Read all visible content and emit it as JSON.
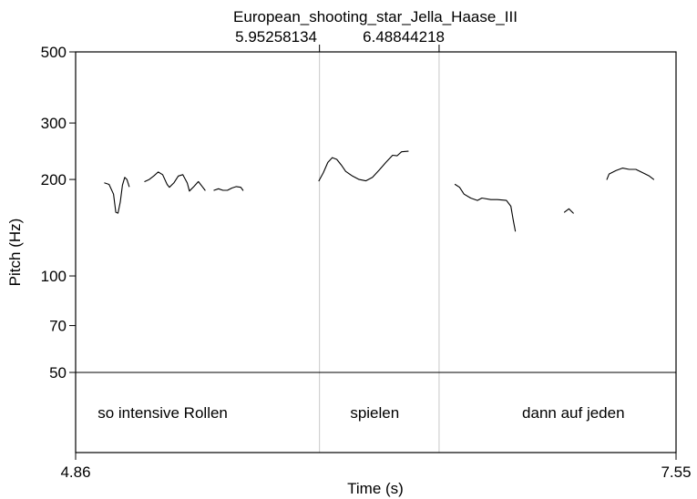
{
  "chart_data": {
    "type": "line",
    "title": "European_shooting_star_Jella_Haase_III",
    "xlabel": "Time (s)",
    "ylabel": "Pitch (Hz)",
    "scale": "log",
    "xlim": [
      4.86,
      7.55
    ],
    "ylim": [
      50,
      500
    ],
    "x_tick_labels": [
      "4.86",
      "7.55"
    ],
    "y_tick_values": [
      500,
      300,
      200,
      100,
      70,
      50
    ],
    "y_tick_labels": [
      "500",
      "300",
      "200",
      "100",
      "70",
      "50"
    ],
    "boundaries": [
      {
        "value": 5.95258134,
        "label": "5.95258134"
      },
      {
        "value": 6.48844218,
        "label": "6.48844218"
      }
    ],
    "baseline_hz": 50,
    "text_tier": [
      {
        "text": "so intensive Rollen",
        "x": 5.25
      },
      {
        "text": "spielen",
        "x": 6.2
      },
      {
        "text": "dann auf jeden",
        "x": 7.09
      }
    ],
    "series": [
      {
        "values": [
          [
            4.99,
            195
          ],
          [
            5.01,
            193
          ],
          [
            5.03,
            180
          ],
          [
            5.04,
            158
          ],
          [
            5.05,
            157
          ],
          [
            5.06,
            170
          ],
          [
            5.07,
            192
          ],
          [
            5.08,
            203
          ],
          [
            5.09,
            200
          ],
          [
            5.1,
            190
          ]
        ]
      },
      {
        "values": [
          [
            5.17,
            197
          ],
          [
            5.19,
            200
          ],
          [
            5.21,
            205
          ],
          [
            5.23,
            211
          ],
          [
            5.25,
            207
          ],
          [
            5.27,
            193
          ],
          [
            5.28,
            189
          ],
          [
            5.3,
            195
          ],
          [
            5.32,
            205
          ],
          [
            5.34,
            207
          ],
          [
            5.36,
            195
          ],
          [
            5.37,
            184
          ],
          [
            5.39,
            190
          ],
          [
            5.41,
            197
          ],
          [
            5.43,
            189
          ],
          [
            5.44,
            185
          ]
        ]
      },
      {
        "values": [
          [
            5.48,
            185
          ],
          [
            5.5,
            187
          ],
          [
            5.52,
            185
          ],
          [
            5.54,
            185
          ],
          [
            5.56,
            188
          ],
          [
            5.58,
            190
          ],
          [
            5.6,
            189
          ],
          [
            5.61,
            185
          ]
        ]
      },
      {
        "values": [
          [
            5.95,
            198
          ],
          [
            5.97,
            210
          ],
          [
            5.99,
            226
          ],
          [
            6.01,
            234
          ],
          [
            6.03,
            231
          ],
          [
            6.05,
            222
          ],
          [
            6.07,
            212
          ],
          [
            6.1,
            205
          ],
          [
            6.13,
            200
          ],
          [
            6.16,
            198
          ],
          [
            6.19,
            203
          ],
          [
            6.22,
            214
          ],
          [
            6.25,
            226
          ],
          [
            6.28,
            238
          ],
          [
            6.3,
            237
          ],
          [
            6.32,
            244
          ],
          [
            6.35,
            245
          ]
        ]
      },
      {
        "values": [
          [
            6.56,
            193
          ],
          [
            6.58,
            189
          ],
          [
            6.6,
            180
          ],
          [
            6.63,
            175
          ],
          [
            6.66,
            172
          ],
          [
            6.68,
            175
          ],
          [
            6.72,
            173
          ],
          [
            6.75,
            173
          ],
          [
            6.79,
            172
          ],
          [
            6.81,
            165
          ],
          [
            6.82,
            150
          ],
          [
            6.83,
            138
          ]
        ]
      },
      {
        "values": [
          [
            7.05,
            158
          ],
          [
            7.07,
            162
          ],
          [
            7.09,
            157
          ]
        ]
      },
      {
        "values": [
          [
            7.24,
            200
          ],
          [
            7.25,
            208
          ],
          [
            7.28,
            213
          ],
          [
            7.31,
            217
          ],
          [
            7.34,
            215
          ],
          [
            7.37,
            215
          ],
          [
            7.4,
            210
          ],
          [
            7.43,
            205
          ],
          [
            7.45,
            200
          ]
        ]
      }
    ]
  }
}
